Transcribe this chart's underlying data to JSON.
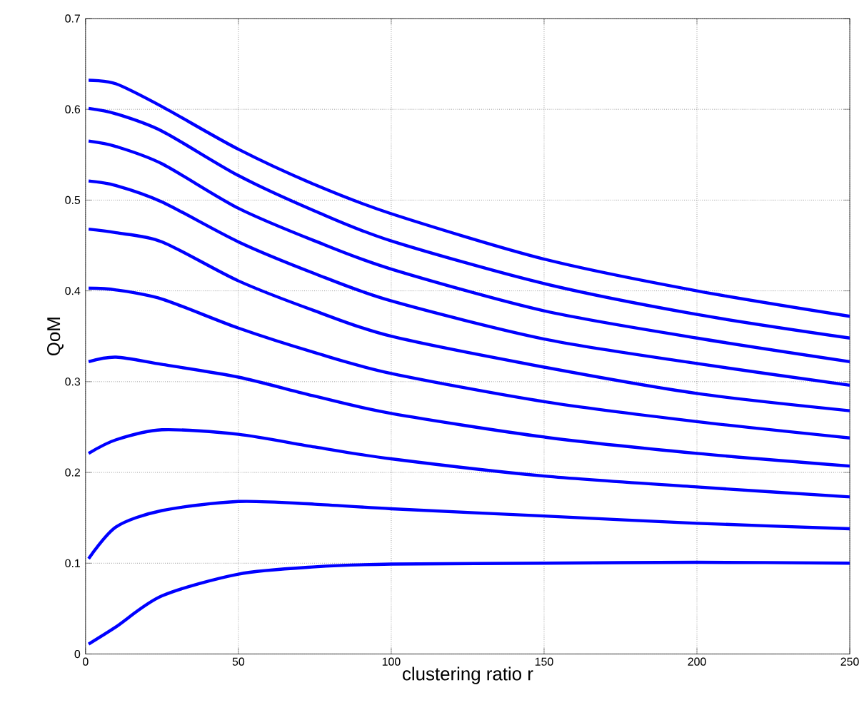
{
  "chart_data": {
    "type": "line",
    "xlabel": "clustering ratio r",
    "ylabel": "QoM",
    "x": [
      1,
      10,
      25,
      50,
      75,
      100,
      150,
      200,
      250
    ],
    "series": [
      {
        "color": "#0000ff",
        "values": [
          0.632,
          0.628,
          0.603,
          0.556,
          0.517,
          0.485,
          0.435,
          0.4,
          0.372
        ]
      },
      {
        "color": "#0000ff",
        "values": [
          0.601,
          0.595,
          0.576,
          0.527,
          0.488,
          0.455,
          0.408,
          0.374,
          0.348
        ]
      },
      {
        "color": "#0000ff",
        "values": [
          0.565,
          0.559,
          0.54,
          0.491,
          0.455,
          0.424,
          0.378,
          0.348,
          0.322
        ]
      },
      {
        "color": "#0000ff",
        "values": [
          0.521,
          0.516,
          0.498,
          0.454,
          0.419,
          0.389,
          0.347,
          0.32,
          0.296
        ]
      },
      {
        "color": "#0000ff",
        "values": [
          0.468,
          0.464,
          0.454,
          0.411,
          0.378,
          0.35,
          0.316,
          0.287,
          0.268
        ]
      },
      {
        "color": "#0000ff",
        "values": [
          0.403,
          0.401,
          0.391,
          0.359,
          0.332,
          0.309,
          0.278,
          0.256,
          0.238
        ]
      },
      {
        "color": "#0000ff",
        "values": [
          0.322,
          0.327,
          0.319,
          0.305,
          0.284,
          0.265,
          0.239,
          0.221,
          0.207
        ]
      },
      {
        "color": "#0000ff",
        "values": [
          0.221,
          0.236,
          0.247,
          0.242,
          0.228,
          0.215,
          0.196,
          0.184,
          0.173
        ]
      },
      {
        "color": "#0000ff",
        "values": [
          0.105,
          0.14,
          0.158,
          0.168,
          0.165,
          0.16,
          0.152,
          0.144,
          0.138
        ]
      },
      {
        "color": "#0000ff",
        "values": [
          0.011,
          0.03,
          0.064,
          0.088,
          0.096,
          0.099,
          0.1,
          0.101,
          0.1
        ]
      }
    ],
    "xlim": [
      0,
      250
    ],
    "ylim": [
      0,
      0.7
    ],
    "xticks": [
      0,
      50,
      100,
      150,
      200,
      250
    ],
    "yticks": [
      0,
      0.1,
      0.2,
      0.3,
      0.4,
      0.5,
      0.6,
      0.7
    ],
    "grid": true,
    "marker": "none",
    "line_style": "solid"
  }
}
